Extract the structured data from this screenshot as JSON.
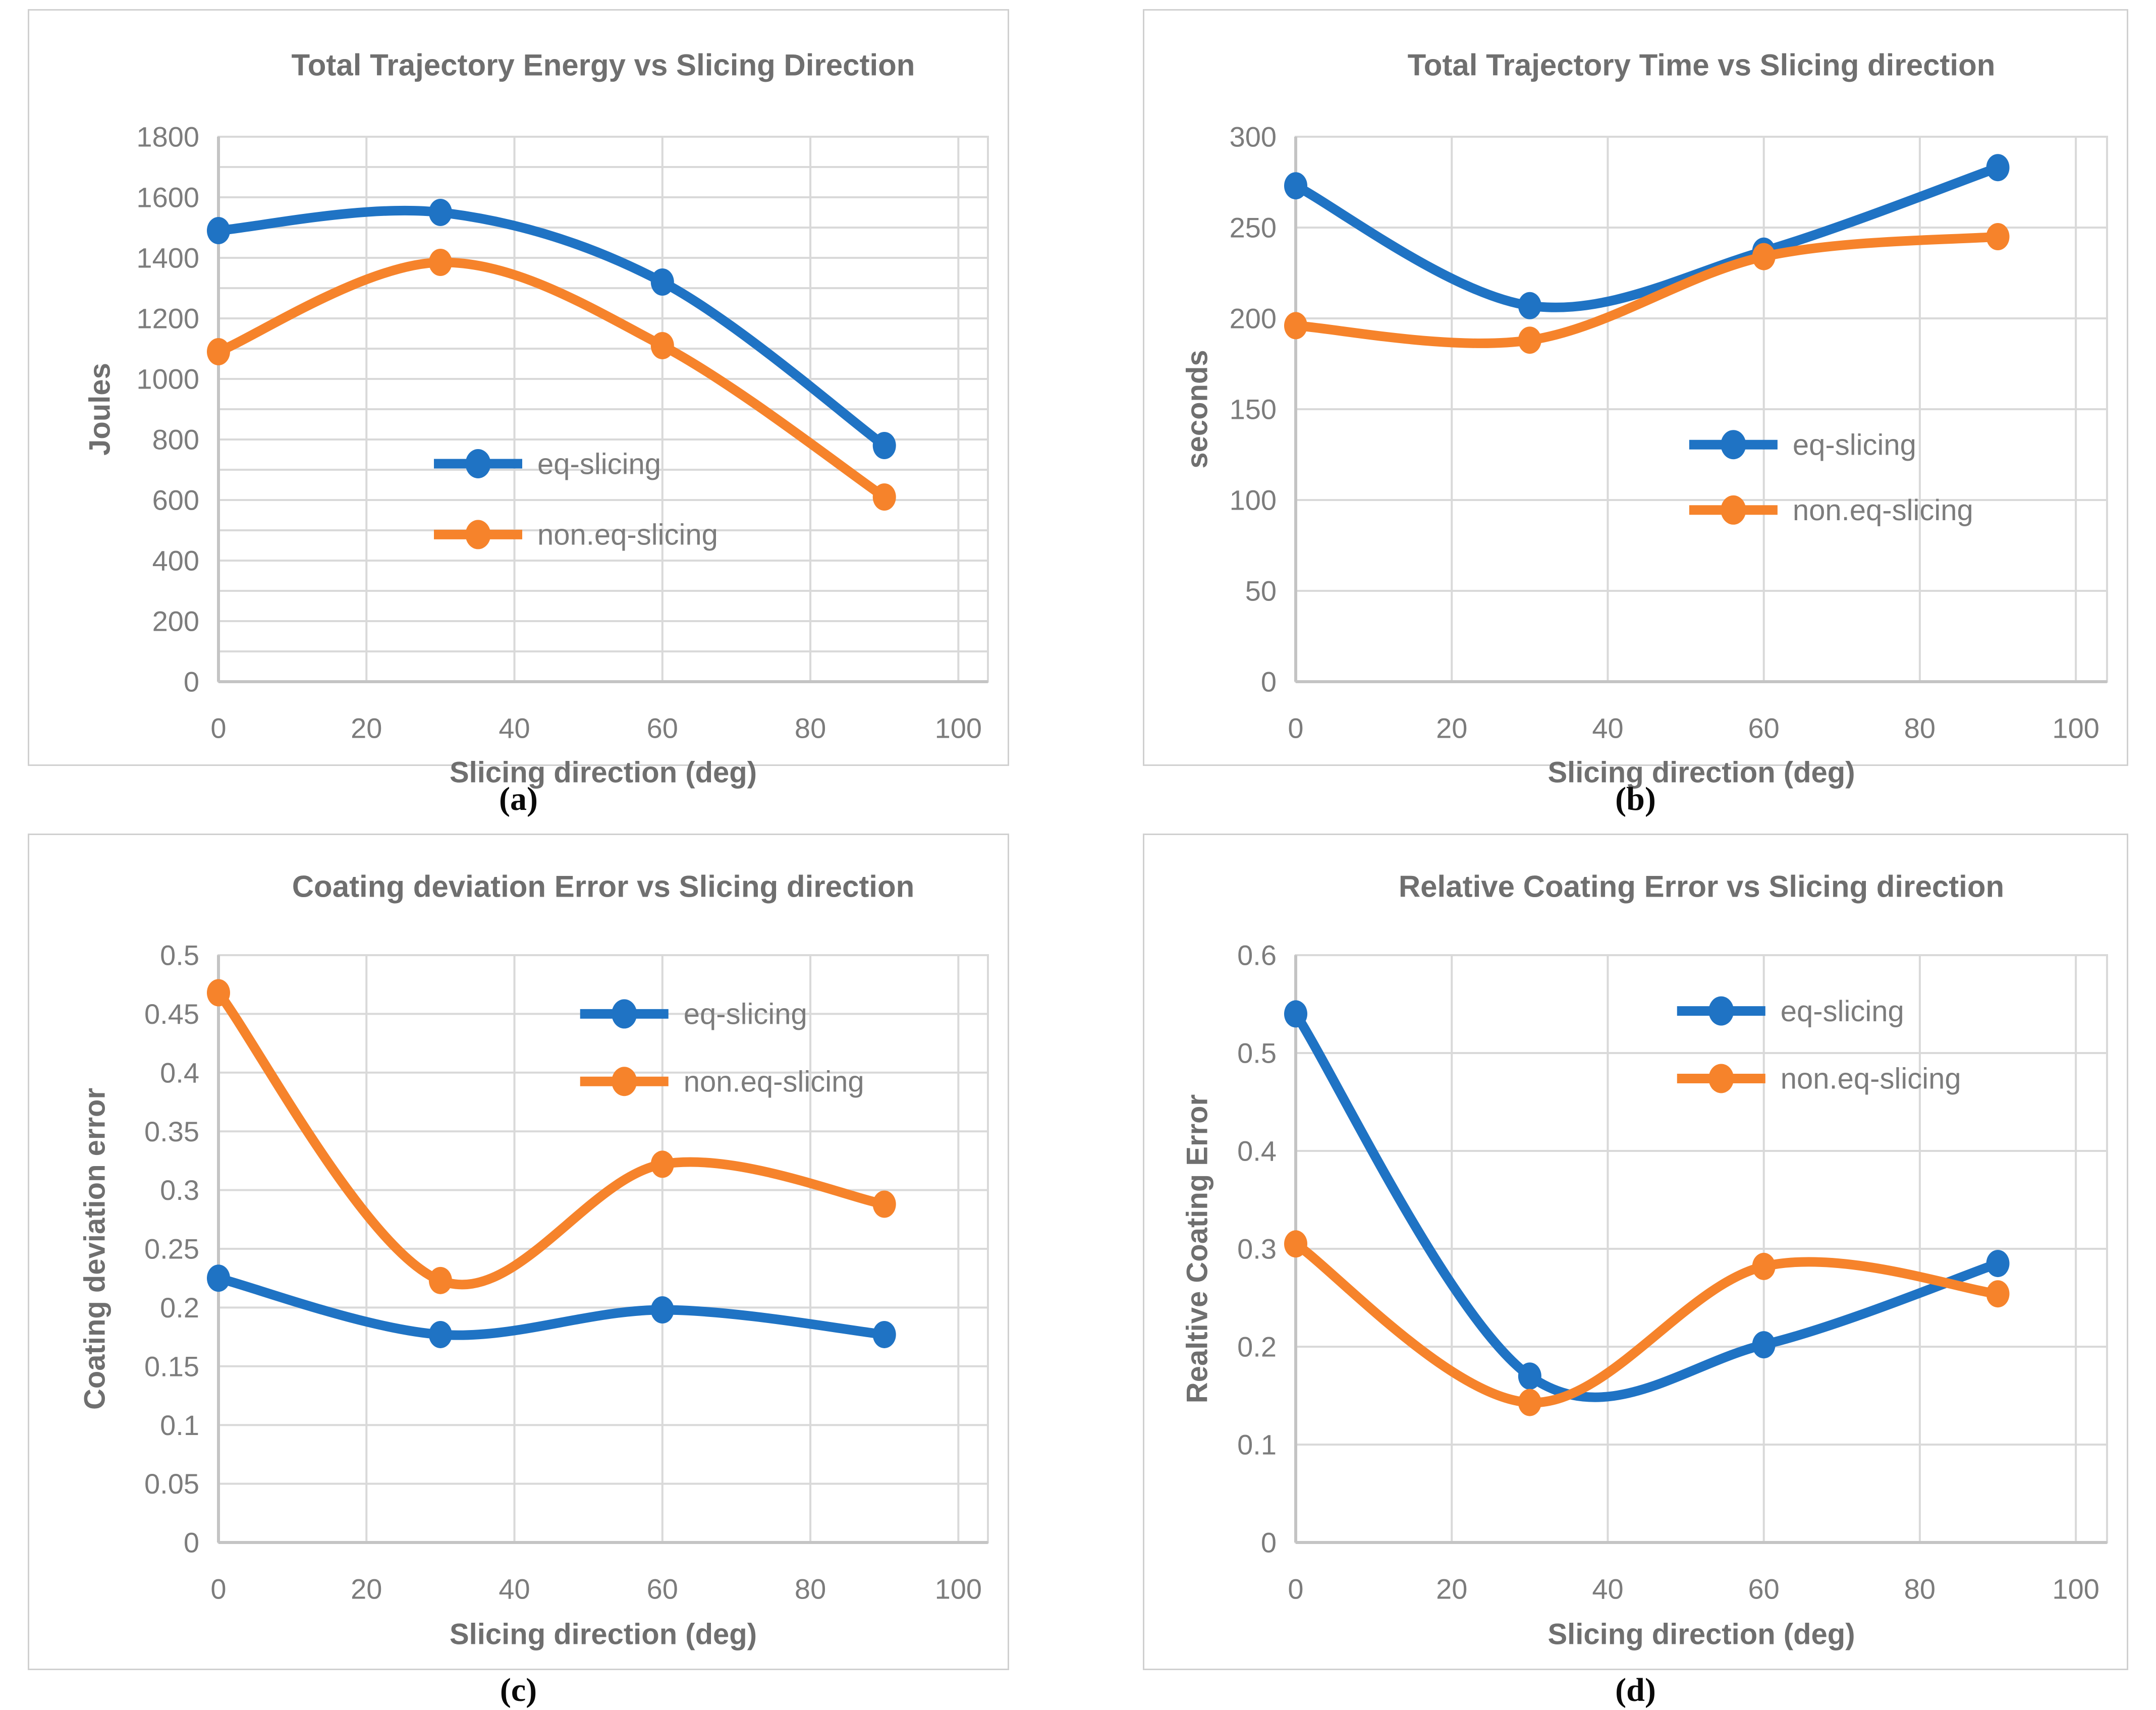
{
  "colors": {
    "blue": "#1F73C4",
    "orange": "#F6832B",
    "grid": "#D9D9D9",
    "axis": "#C4C4C4",
    "tick_text": "#7C7C7C",
    "title_text": "#6F6F6F",
    "panel_border": "#D0D0D0"
  },
  "chart_data": [
    {
      "type": "line",
      "caption": "(a)",
      "title": "Total Trajectory Energy vs Slicing Direction",
      "xlabel": "Slicing direction (deg)",
      "ylabel": "Joules",
      "x": [
        0,
        30,
        60,
        90
      ],
      "series": [
        {
          "name": "eq-slicing",
          "color_key": "blue",
          "values": [
            1490,
            1550,
            1320,
            780
          ]
        },
        {
          "name": "non.eq-slicing",
          "color_key": "orange",
          "values": [
            1090,
            1385,
            1110,
            610
          ]
        }
      ],
      "xlim": [
        0,
        104
      ],
      "ylim": [
        0,
        1800
      ],
      "x_ticks": [
        0,
        20,
        40,
        60,
        80,
        100
      ],
      "y_grid_step": 100,
      "y_label_step": 200,
      "grid": true,
      "legend_position": "inside-center"
    },
    {
      "type": "line",
      "caption": "(b)",
      "title": "Total Trajectory Time vs Slicing direction",
      "xlabel": "Slicing direction (deg)",
      "ylabel": "seconds",
      "x": [
        0,
        30,
        60,
        90
      ],
      "series": [
        {
          "name": "eq-slicing",
          "color_key": "blue",
          "values": [
            273,
            207,
            237,
            283
          ]
        },
        {
          "name": "non.eq-slicing",
          "color_key": "orange",
          "values": [
            196,
            188,
            234,
            245
          ]
        }
      ],
      "xlim": [
        0,
        104
      ],
      "ylim": [
        0,
        300
      ],
      "x_ticks": [
        0,
        20,
        40,
        60,
        80,
        100
      ],
      "y_grid_step": 50,
      "y_label_step": 50,
      "grid": true,
      "legend_position": "inside-right"
    },
    {
      "type": "line",
      "caption": "(c)",
      "title": "Coating deviation Error vs Slicing direction",
      "xlabel": "Slicing direction (deg)",
      "ylabel": "Coating deviation error",
      "x": [
        0,
        30,
        60,
        90
      ],
      "series": [
        {
          "name": "eq-slicing",
          "color_key": "blue",
          "values": [
            0.225,
            0.177,
            0.198,
            0.177
          ]
        },
        {
          "name": "non.eq-slicing",
          "color_key": "orange",
          "values": [
            0.468,
            0.223,
            0.322,
            0.288
          ]
        }
      ],
      "xlim": [
        0,
        104
      ],
      "ylim": [
        0,
        0.5
      ],
      "x_ticks": [
        0,
        20,
        40,
        60,
        80,
        100
      ],
      "y_grid_step": 0.05,
      "y_label_step": 0.05,
      "grid": true,
      "legend_position": "inside-top-right"
    },
    {
      "type": "line",
      "caption": "(d)",
      "title": "Relative Coating Error vs Slicing direction",
      "xlabel": "Slicing direction (deg)",
      "ylabel": "Realtive Coating Error",
      "x": [
        0,
        30,
        60,
        90
      ],
      "series": [
        {
          "name": "eq-slicing",
          "color_key": "blue",
          "values": [
            0.54,
            0.17,
            0.202,
            0.285
          ]
        },
        {
          "name": "non.eq-slicing",
          "color_key": "orange",
          "values": [
            0.305,
            0.143,
            0.282,
            0.254
          ]
        }
      ],
      "xlim": [
        0,
        104
      ],
      "ylim": [
        0,
        0.6
      ],
      "x_ticks": [
        0,
        20,
        40,
        60,
        80,
        100
      ],
      "y_grid_step": 0.1,
      "y_label_step": 0.1,
      "grid": true,
      "legend_position": "inside-top-right"
    }
  ]
}
